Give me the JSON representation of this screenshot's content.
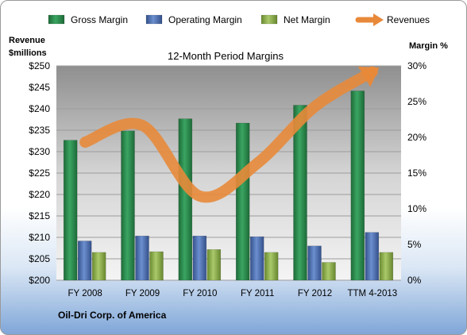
{
  "chart_data": {
    "type": "bar",
    "title": "12-Month Period Margins",
    "left_axis_label_line1": "Revenue",
    "left_axis_label_line2": "$millions",
    "right_axis_label": "Margin %",
    "source_label": "Oil-Dri Corp. of America",
    "categories": [
      "FY 2008",
      "FY 2009",
      "FY 2010",
      "FY 2011",
      "FY 2012",
      "TTM 4-2013"
    ],
    "left_axis": {
      "min": 200,
      "max": 250,
      "step": 5,
      "prefix": "$"
    },
    "right_axis": {
      "min": 0,
      "max": 30,
      "step": 5,
      "suffix": "%"
    },
    "series": [
      {
        "name": "Gross Margin",
        "axis": "right",
        "type": "bar",
        "color": "#2d8a4e",
        "values": [
          19.6,
          20.9,
          22.6,
          22.0,
          24.5,
          26.5
        ]
      },
      {
        "name": "Operating Margin",
        "axis": "right",
        "type": "bar",
        "color": "#4a6fb0",
        "values": [
          5.5,
          6.2,
          6.2,
          6.1,
          4.8,
          6.7
        ]
      },
      {
        "name": "Net Margin",
        "axis": "right",
        "type": "bar",
        "color": "#8db04a",
        "values": [
          3.9,
          4.0,
          4.3,
          3.9,
          2.5,
          3.9
        ]
      },
      {
        "name": "Revenues",
        "axis": "left",
        "type": "line",
        "color": "#e8893a",
        "values": [
          232.2,
          236.1,
          219.6,
          227.3,
          240.5,
          248.6
        ]
      }
    ],
    "grid": true,
    "legend": "top"
  }
}
